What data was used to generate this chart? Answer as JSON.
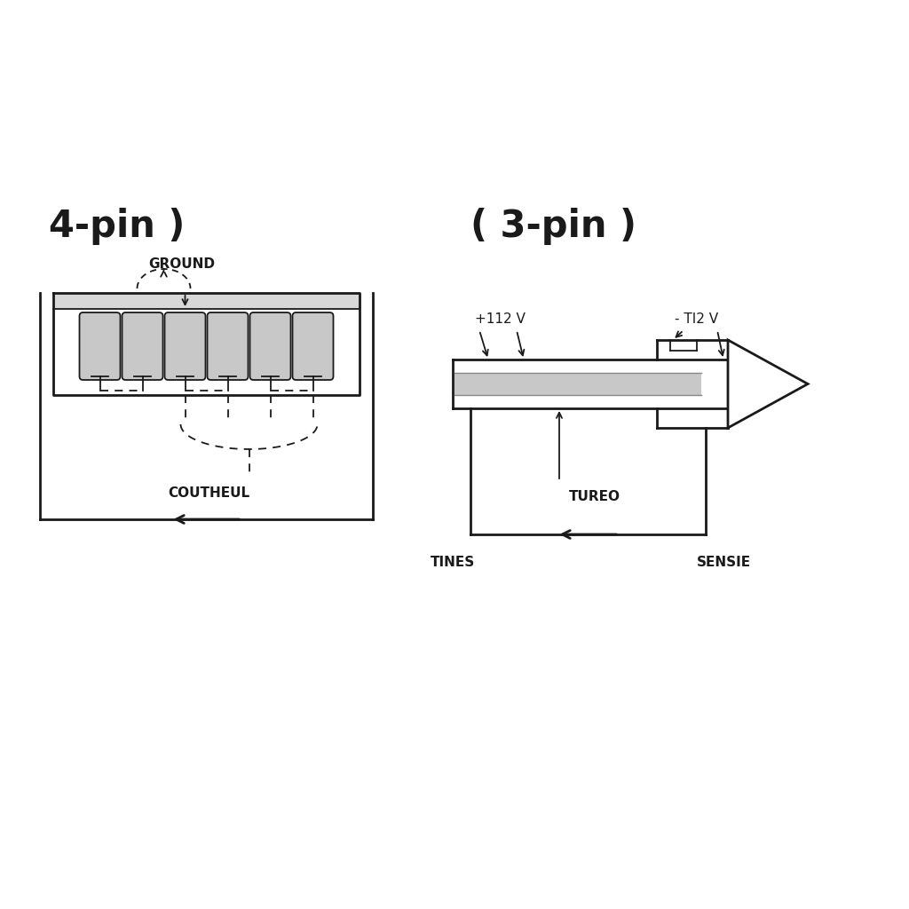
{
  "bg_color": "#ffffff",
  "line_color": "#1a1a1a",
  "gray_fill": "#c8c8c8",
  "dark_gray": "#888888",
  "label_4pin": "4-pin )",
  "label_3pin": "( 3-pin )",
  "ground_label": "GROUND",
  "coutheul_label": "COUTHEUL",
  "plus112v_label": "+112 V",
  "minus112v_label": "- TI2 V",
  "tureo_label": "TUREO",
  "tines_label": "TINES",
  "sensie_label": "SENSIE",
  "num_pins": 6,
  "lw_main": 2.0,
  "lw_thin": 1.3
}
